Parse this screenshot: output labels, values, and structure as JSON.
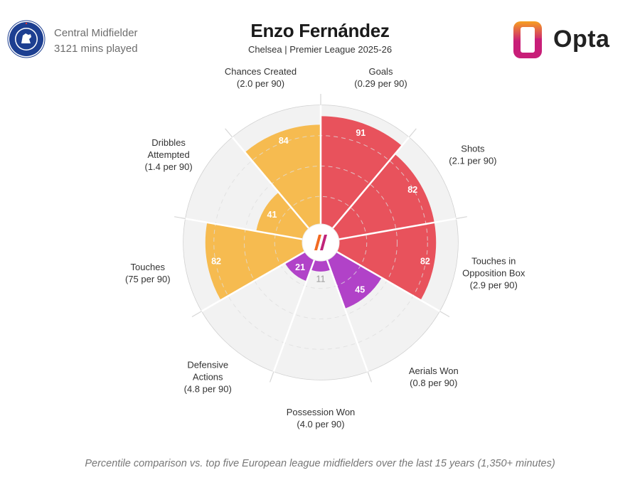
{
  "header": {
    "position": "Central Midfielder",
    "minutes": "3121 mins played",
    "player_name": "Enzo Fernández",
    "subtitle": "Chelsea | Premier League 2025-26",
    "brand": "Opta"
  },
  "footnote": "Percentile comparison vs. top five European league midfielders over the last 15 years (1,350+ minutes)",
  "colors": {
    "attacking": "#e8525c",
    "possession": "#f6bb50",
    "defending": "#b142c8",
    "empty_segment": "#f2f2f2",
    "grid": "#d9d9d9",
    "brand_orange": "#f26a22",
    "brand_magenta": "#c0247a"
  },
  "chart_data": {
    "type": "radar",
    "title": "",
    "scale": [
      0,
      100
    ],
    "gridlines": [
      25,
      50,
      75,
      100
    ],
    "categories": [
      {
        "label": [
          "Goals",
          "(0.29 per 90)"
        ],
        "value": 91,
        "group": "attacking"
      },
      {
        "label": [
          "Shots",
          "(2.1 per 90)"
        ],
        "value": 82,
        "group": "attacking"
      },
      {
        "label": [
          "Touches in",
          "Opposition Box",
          "(2.9 per 90)"
        ],
        "value": 82,
        "group": "attacking"
      },
      {
        "label": [
          "Aerials Won",
          "(0.8 per 90)"
        ],
        "value": 45,
        "group": "defending"
      },
      {
        "label": [
          "Possession Won",
          "(4.0 per 90)"
        ],
        "value": 11,
        "group": "defending"
      },
      {
        "label": [
          "Defensive",
          "Actions",
          "(4.8 per 90)"
        ],
        "value": 21,
        "group": "defending"
      },
      {
        "label": [
          "Touches",
          "(75 per 90)"
        ],
        "value": 82,
        "group": "possession"
      },
      {
        "label": [
          "Dribbles",
          "Attempted",
          "(1.4 per 90)"
        ],
        "value": 41,
        "group": "possession"
      },
      {
        "label": [
          "Chances Created",
          "(2.0 per 90)"
        ],
        "value": 84,
        "group": "possession"
      }
    ]
  }
}
